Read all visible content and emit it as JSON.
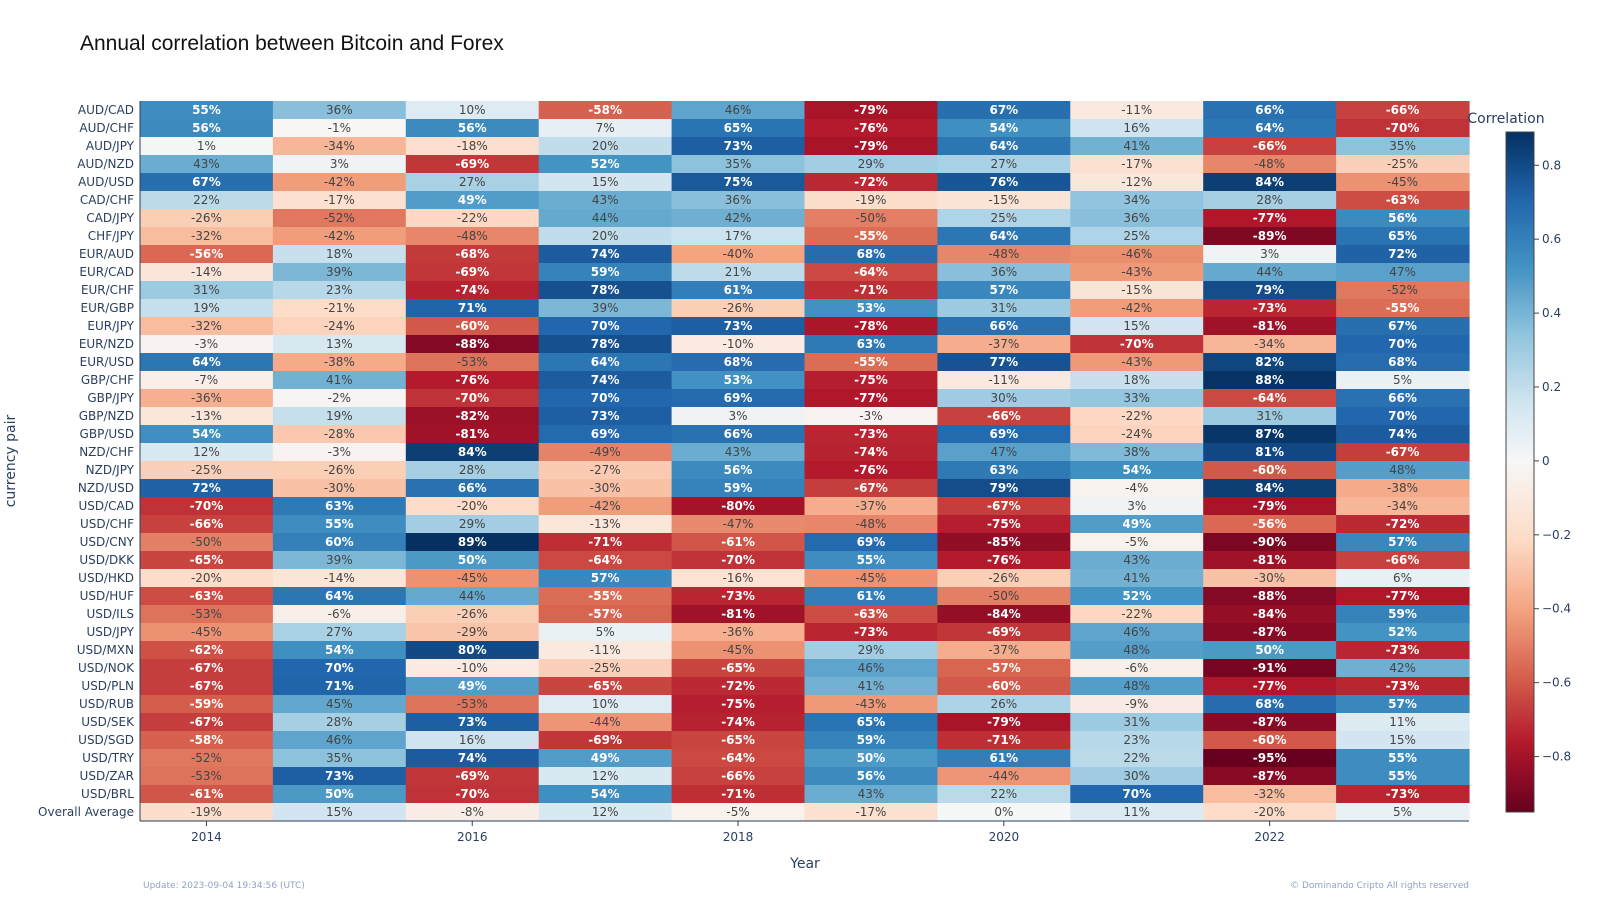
{
  "chart_data": {
    "type": "heatmap",
    "title": "Annual correlation between Bitcoin and Forex",
    "xlabel": "Year",
    "ylabel": "currency pair",
    "colorbar_title": "Correlation",
    "colorscale": "RdBu",
    "zrange": [
      -0.95,
      0.89
    ],
    "x": [
      2014,
      2015,
      2016,
      2017,
      2018,
      2019,
      2020,
      2021,
      2022,
      2023
    ],
    "x_tick_labels": [
      "2014",
      "2016",
      "2018",
      "2020",
      "2022"
    ],
    "x_tick_values": [
      2014,
      2016,
      2018,
      2020,
      2022
    ],
    "colorbar_ticks": [
      {
        "value": 0.8,
        "label": "0.8"
      },
      {
        "value": 0.6,
        "label": "0.6"
      },
      {
        "value": 0.4,
        "label": "0.4"
      },
      {
        "value": 0.2,
        "label": "0.2"
      },
      {
        "value": 0,
        "label": "0"
      },
      {
        "value": -0.2,
        "label": "−0.2"
      },
      {
        "value": -0.4,
        "label": "−0.4"
      },
      {
        "value": -0.6,
        "label": "−0.6"
      },
      {
        "value": -0.8,
        "label": "−0.8"
      }
    ],
    "rows": [
      {
        "pair": "AUD/CAD",
        "values": [
          0.55,
          0.36,
          0.1,
          -0.58,
          0.46,
          -0.79,
          0.67,
          -0.11,
          0.66,
          -0.66
        ]
      },
      {
        "pair": "AUD/CHF",
        "values": [
          0.56,
          -0.01,
          0.56,
          0.07,
          0.65,
          -0.76,
          0.54,
          0.16,
          0.64,
          -0.7
        ]
      },
      {
        "pair": "AUD/JPY",
        "values": [
          0.01,
          -0.34,
          -0.18,
          0.2,
          0.73,
          -0.79,
          0.64,
          0.41,
          -0.66,
          0.35
        ]
      },
      {
        "pair": "AUD/NZD",
        "values": [
          0.43,
          0.03,
          -0.69,
          0.52,
          0.35,
          0.29,
          0.27,
          -0.17,
          -0.48,
          -0.25
        ]
      },
      {
        "pair": "AUD/USD",
        "values": [
          0.67,
          -0.42,
          0.27,
          0.15,
          0.75,
          -0.72,
          0.76,
          -0.12,
          0.84,
          -0.45
        ]
      },
      {
        "pair": "CAD/CHF",
        "values": [
          0.22,
          -0.17,
          0.49,
          0.43,
          0.36,
          -0.19,
          -0.15,
          0.34,
          0.28,
          -0.63
        ]
      },
      {
        "pair": "CAD/JPY",
        "values": [
          -0.26,
          -0.52,
          -0.22,
          0.44,
          0.42,
          -0.5,
          0.25,
          0.36,
          -0.77,
          0.56
        ]
      },
      {
        "pair": "CHF/JPY",
        "values": [
          -0.32,
          -0.42,
          -0.48,
          0.2,
          0.17,
          -0.55,
          0.64,
          0.25,
          -0.89,
          0.65
        ]
      },
      {
        "pair": "EUR/AUD",
        "values": [
          -0.56,
          0.18,
          -0.68,
          0.74,
          -0.4,
          0.68,
          -0.48,
          -0.46,
          0.03,
          0.72
        ]
      },
      {
        "pair": "EUR/CAD",
        "values": [
          -0.14,
          0.39,
          -0.69,
          0.59,
          0.21,
          -0.64,
          0.36,
          -0.43,
          0.44,
          0.47
        ]
      },
      {
        "pair": "EUR/CHF",
        "values": [
          0.31,
          0.23,
          -0.74,
          0.78,
          0.61,
          -0.71,
          0.57,
          -0.15,
          0.79,
          -0.52
        ]
      },
      {
        "pair": "EUR/GBP",
        "values": [
          0.19,
          -0.21,
          0.71,
          0.39,
          -0.26,
          0.53,
          0.31,
          -0.42,
          -0.73,
          -0.55
        ]
      },
      {
        "pair": "EUR/JPY",
        "values": [
          -0.32,
          -0.24,
          -0.6,
          0.7,
          0.73,
          -0.78,
          0.66,
          0.15,
          -0.81,
          0.67
        ]
      },
      {
        "pair": "EUR/NZD",
        "values": [
          -0.03,
          0.13,
          -0.88,
          0.78,
          -0.1,
          0.63,
          -0.37,
          -0.7,
          -0.34,
          0.7
        ]
      },
      {
        "pair": "EUR/USD",
        "values": [
          0.64,
          -0.38,
          -0.53,
          0.64,
          0.68,
          -0.55,
          0.77,
          -0.43,
          0.82,
          0.68
        ]
      },
      {
        "pair": "GBP/CHF",
        "values": [
          -0.07,
          0.41,
          -0.76,
          0.74,
          0.53,
          -0.75,
          -0.11,
          0.18,
          0.88,
          0.05
        ]
      },
      {
        "pair": "GBP/JPY",
        "values": [
          -0.36,
          -0.02,
          -0.7,
          0.7,
          0.69,
          -0.77,
          0.3,
          0.33,
          -0.64,
          0.66
        ]
      },
      {
        "pair": "GBP/NZD",
        "values": [
          -0.13,
          0.19,
          -0.82,
          0.73,
          0.03,
          -0.03,
          -0.66,
          -0.22,
          0.31,
          0.7
        ]
      },
      {
        "pair": "GBP/USD",
        "values": [
          0.54,
          -0.28,
          -0.81,
          0.69,
          0.66,
          -0.73,
          0.69,
          -0.24,
          0.87,
          0.74
        ]
      },
      {
        "pair": "NZD/CHF",
        "values": [
          0.12,
          -0.03,
          0.84,
          -0.49,
          0.43,
          -0.74,
          0.47,
          0.38,
          0.81,
          -0.67
        ]
      },
      {
        "pair": "NZD/JPY",
        "values": [
          -0.25,
          -0.26,
          0.28,
          -0.27,
          0.56,
          -0.76,
          0.63,
          0.54,
          -0.6,
          0.48
        ]
      },
      {
        "pair": "NZD/USD",
        "values": [
          0.72,
          -0.3,
          0.66,
          -0.3,
          0.59,
          -0.67,
          0.79,
          -0.04,
          0.84,
          -0.38
        ]
      },
      {
        "pair": "USD/CAD",
        "values": [
          -0.7,
          0.63,
          -0.2,
          -0.42,
          -0.8,
          -0.37,
          -0.67,
          0.03,
          -0.79,
          -0.34
        ]
      },
      {
        "pair": "USD/CHF",
        "values": [
          -0.66,
          0.55,
          0.29,
          -0.13,
          -0.47,
          -0.48,
          -0.75,
          0.49,
          -0.56,
          -0.72
        ]
      },
      {
        "pair": "USD/CNY",
        "values": [
          -0.5,
          0.6,
          0.89,
          -0.71,
          -0.61,
          0.69,
          -0.85,
          -0.05,
          -0.9,
          0.57
        ]
      },
      {
        "pair": "USD/DKK",
        "values": [
          -0.65,
          0.39,
          0.5,
          -0.64,
          -0.7,
          0.55,
          -0.76,
          0.43,
          -0.81,
          -0.66
        ]
      },
      {
        "pair": "USD/HKD",
        "values": [
          -0.2,
          -0.14,
          -0.45,
          0.57,
          -0.16,
          -0.45,
          -0.26,
          0.41,
          -0.3,
          0.06
        ]
      },
      {
        "pair": "USD/HUF",
        "values": [
          -0.63,
          0.64,
          0.44,
          -0.55,
          -0.73,
          0.61,
          -0.5,
          0.52,
          -0.88,
          -0.77
        ]
      },
      {
        "pair": "USD/ILS",
        "values": [
          -0.53,
          -0.06,
          -0.26,
          -0.57,
          -0.81,
          -0.63,
          -0.84,
          -0.22,
          -0.84,
          0.59
        ]
      },
      {
        "pair": "USD/JPY",
        "values": [
          -0.45,
          0.27,
          -0.29,
          0.05,
          -0.36,
          -0.73,
          -0.69,
          0.46,
          -0.87,
          0.52
        ]
      },
      {
        "pair": "USD/MXN",
        "values": [
          -0.62,
          0.54,
          0.8,
          -0.11,
          -0.45,
          0.29,
          -0.37,
          0.48,
          0.5,
          -0.73
        ]
      },
      {
        "pair": "USD/NOK",
        "values": [
          -0.67,
          0.7,
          -0.1,
          -0.25,
          -0.65,
          0.46,
          -0.57,
          -0.06,
          -0.91,
          0.42
        ]
      },
      {
        "pair": "USD/PLN",
        "values": [
          -0.67,
          0.71,
          0.49,
          -0.65,
          -0.72,
          0.41,
          -0.6,
          0.48,
          -0.77,
          -0.73
        ]
      },
      {
        "pair": "USD/RUB",
        "values": [
          -0.59,
          0.45,
          -0.53,
          0.1,
          -0.75,
          -0.43,
          0.26,
          -0.09,
          0.68,
          0.57
        ]
      },
      {
        "pair": "USD/SEK",
        "values": [
          -0.67,
          0.28,
          0.73,
          -0.44,
          -0.74,
          0.65,
          -0.79,
          0.31,
          -0.87,
          0.11
        ]
      },
      {
        "pair": "USD/SGD",
        "values": [
          -0.58,
          0.46,
          0.16,
          -0.69,
          -0.65,
          0.59,
          -0.71,
          0.23,
          -0.6,
          0.15
        ]
      },
      {
        "pair": "USD/TRY",
        "values": [
          -0.52,
          0.35,
          0.74,
          0.49,
          -0.64,
          0.5,
          0.61,
          0.22,
          -0.95,
          0.55
        ]
      },
      {
        "pair": "USD/ZAR",
        "values": [
          -0.53,
          0.73,
          -0.69,
          0.12,
          -0.66,
          0.56,
          -0.44,
          0.3,
          -0.87,
          0.55
        ]
      },
      {
        "pair": "USD/BRL",
        "values": [
          -0.61,
          0.5,
          -0.7,
          0.54,
          -0.71,
          0.43,
          0.22,
          0.7,
          -0.32,
          -0.73
        ]
      },
      {
        "pair": "Overall Average",
        "values": [
          -0.19,
          0.15,
          -0.08,
          0.12,
          -0.05,
          -0.17,
          0.0,
          0.11,
          -0.2,
          0.05
        ]
      }
    ]
  },
  "footer": {
    "update": "Update: 2023-09-04 19:34:56 (UTC)",
    "copyright": "© Dominando Cripto All rights reserved"
  }
}
